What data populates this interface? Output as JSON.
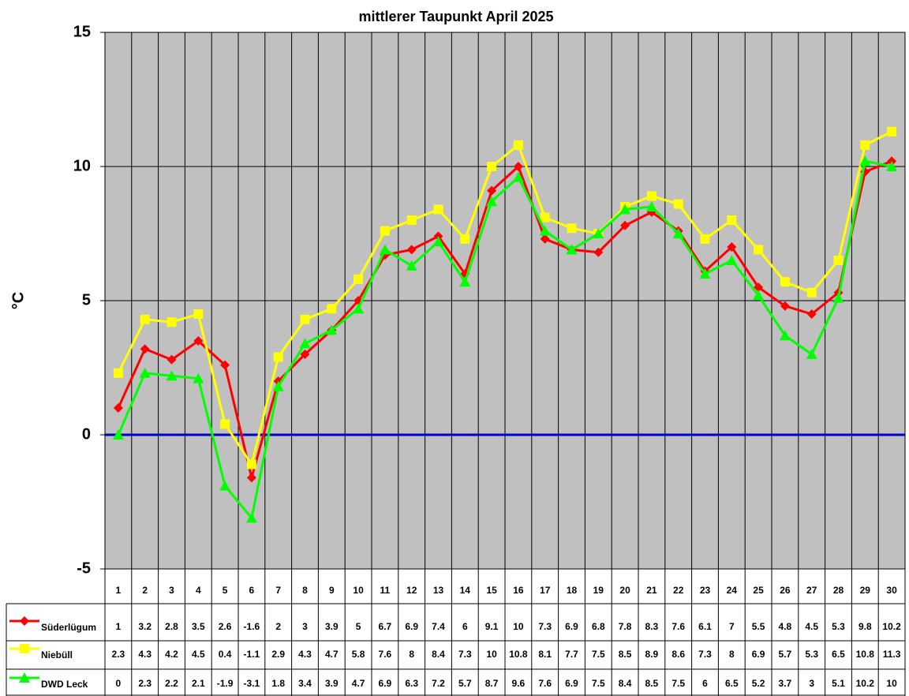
{
  "chart_data": {
    "type": "line",
    "title": "mittlerer Taupunkt April 2025",
    "y_label": "°C",
    "categories": [
      "1",
      "2",
      "3",
      "4",
      "5",
      "6",
      "7",
      "8",
      "9",
      "10",
      "11",
      "12",
      "13",
      "14",
      "15",
      "16",
      "17",
      "18",
      "19",
      "20",
      "21",
      "22",
      "23",
      "24",
      "25",
      "26",
      "27",
      "28",
      "29",
      "30"
    ],
    "series": [
      {
        "name": "Süderlügum",
        "color": "#ff0000",
        "marker": "diamond",
        "values": [
          1,
          3.2,
          2.8,
          3.5,
          2.6,
          -1.6,
          2,
          3,
          3.9,
          5,
          6.7,
          6.9,
          7.4,
          6,
          9.1,
          10,
          7.3,
          6.9,
          6.8,
          7.8,
          8.3,
          7.6,
          6.1,
          7,
          5.5,
          4.8,
          4.5,
          5.3,
          9.8,
          10.2
        ]
      },
      {
        "name": "Niebüll",
        "color": "#ffff00",
        "marker": "square",
        "values": [
          2.3,
          4.3,
          4.2,
          4.5,
          0.4,
          -1.1,
          2.9,
          4.3,
          4.7,
          5.8,
          7.6,
          8,
          8.4,
          7.3,
          10,
          10.8,
          8.1,
          7.7,
          7.5,
          8.5,
          8.9,
          8.6,
          7.3,
          8,
          6.9,
          5.7,
          5.3,
          6.5,
          10.8,
          11.3
        ]
      },
      {
        "name": "DWD Leck",
        "color": "#00ff00",
        "marker": "triangle",
        "values": [
          0,
          2.3,
          2.2,
          2.1,
          -1.9,
          -3.1,
          1.8,
          3.4,
          3.9,
          4.7,
          6.9,
          6.3,
          7.2,
          5.7,
          8.7,
          9.6,
          7.6,
          6.9,
          7.5,
          8.4,
          8.5,
          7.5,
          6,
          6.5,
          5.2,
          3.7,
          3,
          5.1,
          10.2,
          10
        ]
      }
    ],
    "ylim": [
      -5,
      15
    ],
    "yticks": [
      -5,
      0,
      5,
      10,
      15
    ],
    "grid": true
  }
}
